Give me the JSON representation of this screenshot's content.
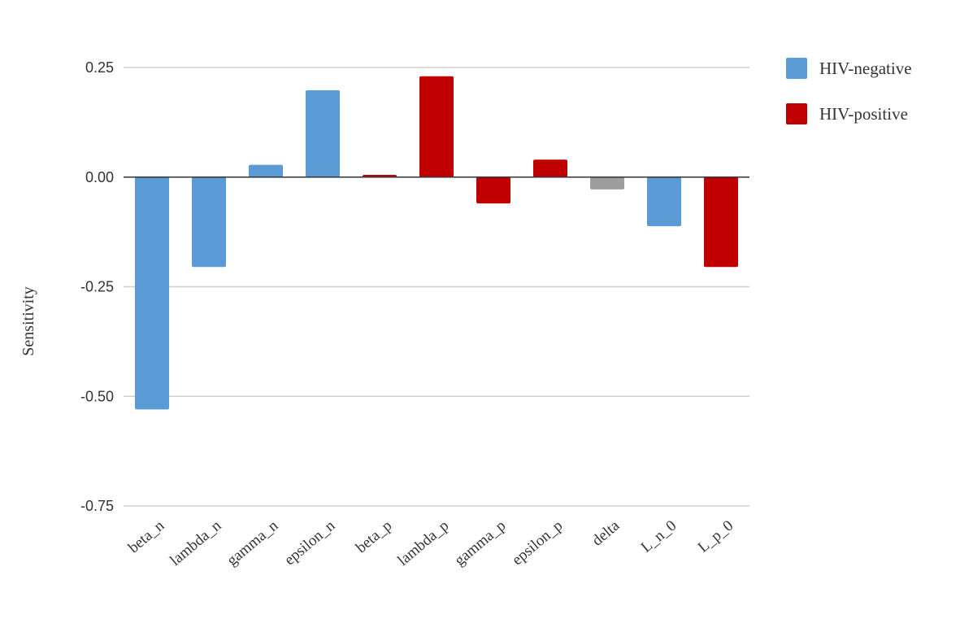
{
  "chart_data": {
    "type": "bar",
    "title": "",
    "xlabel": "",
    "ylabel": "Sensitivity",
    "ylim": [
      -0.75,
      0.25
    ],
    "yticks": [
      0.25,
      0.0,
      -0.25,
      -0.5,
      -0.75
    ],
    "ytick_labels": [
      "0.25",
      "0.00",
      "-0.25",
      "-0.50",
      "-0.75"
    ],
    "grid": true,
    "legend_position": "top-right",
    "categories": [
      "beta_n",
      "lambda_n",
      "gamma_n",
      "epsilon_n",
      "beta_p",
      "lambda_p",
      "gamma_p",
      "epsilon_p",
      "delta",
      "L_n_0",
      "L_p_0"
    ],
    "values": [
      -0.53,
      -0.205,
      0.028,
      0.198,
      0.005,
      0.23,
      -0.06,
      0.04,
      -0.028,
      -0.112,
      -0.205
    ],
    "bar_groups": [
      "HIV-negative",
      "HIV-negative",
      "HIV-negative",
      "HIV-negative",
      "HIV-positive",
      "HIV-positive",
      "HIV-positive",
      "HIV-positive",
      "other",
      "HIV-negative",
      "HIV-positive"
    ],
    "legend": [
      {
        "name": "HIV-negative",
        "color": "#5b9bd5"
      },
      {
        "name": "HIV-positive",
        "color": "#c00000"
      }
    ],
    "colors": {
      "HIV-negative": "#5b9bd5",
      "HIV-positive": "#c00000",
      "other": "#9e9e9e",
      "gridline": "#d0d0d0",
      "zero_line": "#333333"
    }
  }
}
